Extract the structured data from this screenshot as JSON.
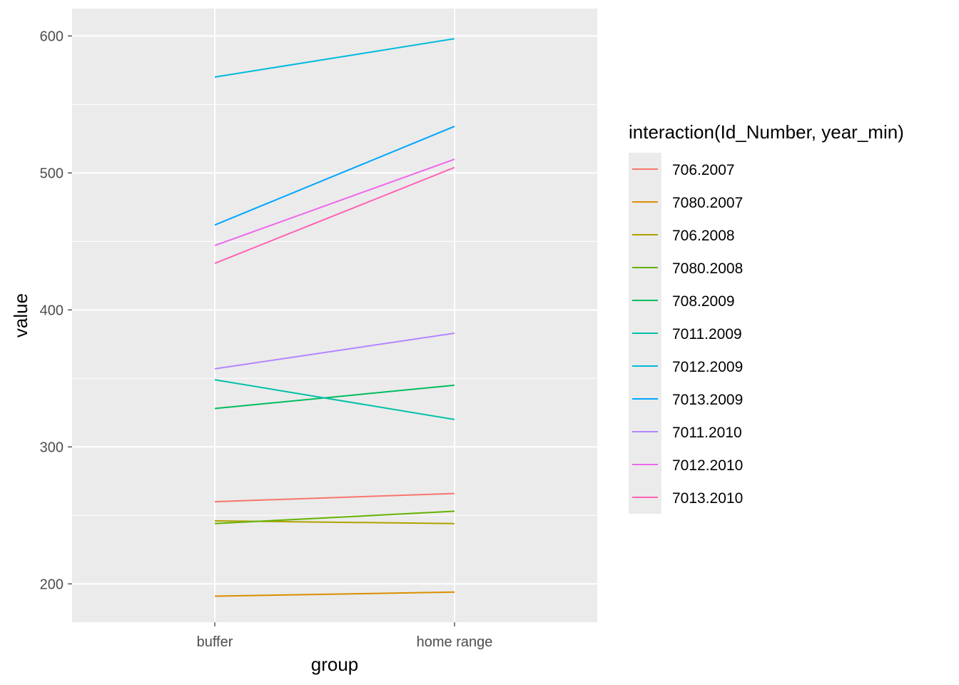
{
  "chart_data": {
    "type": "line",
    "xlabel": "group",
    "ylabel": "value",
    "categories": [
      "buffer",
      "home range"
    ],
    "y_ticks": [
      200,
      300,
      400,
      500,
      600
    ],
    "ylim": [
      172,
      620
    ],
    "grid": true,
    "panel_background": "#ebebeb",
    "legend": {
      "title": "interaction(Id_Number, year_min)",
      "position": "right"
    },
    "series": [
      {
        "name": "706.2007",
        "color": "#F8766D",
        "values": [
          260,
          266
        ]
      },
      {
        "name": "7080.2007",
        "color": "#DB8E00",
        "values": [
          191,
          194
        ]
      },
      {
        "name": "706.2008",
        "color": "#AEA200",
        "values": [
          246,
          244
        ]
      },
      {
        "name": "7080.2008",
        "color": "#64B200",
        "values": [
          244,
          253
        ]
      },
      {
        "name": "708.2009",
        "color": "#00BD5C",
        "values": [
          328,
          345
        ]
      },
      {
        "name": "7011.2009",
        "color": "#00C1A7",
        "values": [
          349,
          320
        ]
      },
      {
        "name": "7012.2009",
        "color": "#00BADE",
        "values": [
          570,
          598
        ]
      },
      {
        "name": "7013.2009",
        "color": "#00A6FF",
        "values": [
          462,
          534
        ]
      },
      {
        "name": "7011.2010",
        "color": "#B385FF",
        "values": [
          357,
          383
        ]
      },
      {
        "name": "7012.2010",
        "color": "#EF67EB",
        "values": [
          447,
          510
        ]
      },
      {
        "name": "7013.2010",
        "color": "#FF63B6",
        "values": [
          434,
          504
        ]
      }
    ]
  }
}
